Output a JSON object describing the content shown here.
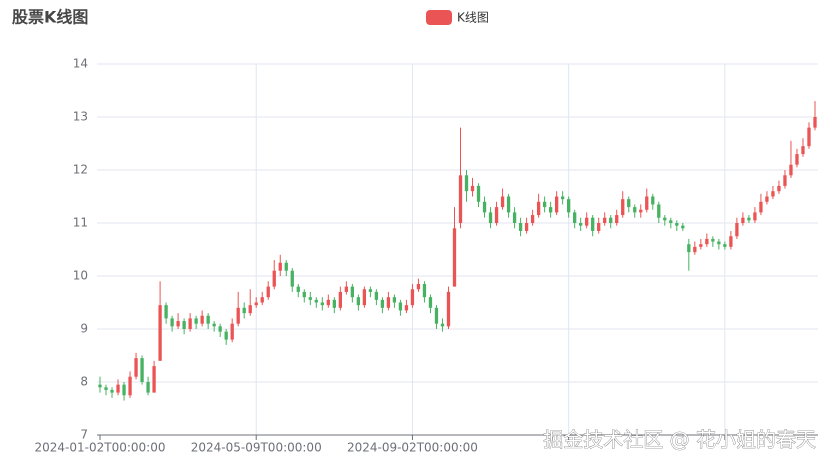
{
  "chart_data": {
    "type": "candlestick",
    "title": "股票K线图",
    "legend": "top",
    "watermark": "掘金技术社区 @ 花小姐的春天",
    "series": [
      {
        "name": "K线图",
        "color": "#eb5454",
        "down_color": "#47b262",
        "values": [
          [
            7.95,
            7.9,
            7.8,
            8.1
          ],
          [
            7.9,
            7.85,
            7.75,
            7.95
          ],
          [
            7.85,
            7.8,
            7.7,
            7.9
          ],
          [
            7.8,
            7.95,
            7.75,
            8.05
          ],
          [
            7.95,
            7.75,
            7.65,
            8.0
          ],
          [
            7.75,
            8.1,
            7.7,
            8.2
          ],
          [
            8.1,
            8.45,
            8.05,
            8.55
          ],
          [
            8.45,
            8.0,
            7.95,
            8.5
          ],
          [
            8.0,
            7.8,
            7.75,
            8.1
          ],
          [
            7.8,
            8.3,
            7.8,
            8.4
          ],
          [
            8.4,
            9.45,
            8.4,
            9.9
          ],
          [
            9.45,
            9.2,
            9.1,
            9.5
          ],
          [
            9.2,
            9.05,
            8.95,
            9.25
          ],
          [
            9.05,
            9.15,
            9.0,
            9.3
          ],
          [
            9.15,
            9.0,
            8.9,
            9.2
          ],
          [
            9.0,
            9.2,
            8.95,
            9.3
          ],
          [
            9.2,
            9.1,
            9.0,
            9.25
          ],
          [
            9.1,
            9.25,
            9.05,
            9.35
          ],
          [
            9.25,
            9.1,
            9.0,
            9.3
          ],
          [
            9.1,
            9.05,
            8.95,
            9.15
          ],
          [
            9.05,
            8.95,
            8.85,
            9.1
          ],
          [
            8.95,
            8.8,
            8.7,
            9.0
          ],
          [
            8.8,
            9.1,
            8.75,
            9.2
          ],
          [
            9.1,
            9.4,
            9.05,
            9.7
          ],
          [
            9.4,
            9.3,
            9.2,
            9.5
          ],
          [
            9.3,
            9.45,
            9.25,
            9.75
          ],
          [
            9.45,
            9.5,
            9.4,
            9.6
          ],
          [
            9.5,
            9.6,
            9.45,
            9.7
          ],
          [
            9.6,
            9.8,
            9.55,
            9.9
          ],
          [
            9.8,
            10.1,
            9.75,
            10.3
          ],
          [
            10.1,
            10.25,
            10.0,
            10.4
          ],
          [
            10.25,
            10.1,
            10.0,
            10.3
          ],
          [
            10.1,
            9.8,
            9.7,
            10.15
          ],
          [
            9.8,
            9.7,
            9.6,
            9.85
          ],
          [
            9.7,
            9.6,
            9.5,
            9.75
          ],
          [
            9.6,
            9.55,
            9.45,
            9.7
          ],
          [
            9.55,
            9.5,
            9.4,
            9.6
          ],
          [
            9.5,
            9.45,
            9.35,
            9.6
          ],
          [
            9.45,
            9.55,
            9.4,
            9.65
          ],
          [
            9.55,
            9.4,
            9.3,
            9.6
          ],
          [
            9.4,
            9.7,
            9.35,
            9.8
          ],
          [
            9.7,
            9.8,
            9.65,
            9.9
          ],
          [
            9.8,
            9.6,
            9.5,
            9.85
          ],
          [
            9.6,
            9.45,
            9.35,
            9.65
          ],
          [
            9.45,
            9.75,
            9.4,
            9.8
          ],
          [
            9.75,
            9.7,
            9.6,
            9.8
          ],
          [
            9.7,
            9.55,
            9.45,
            9.75
          ],
          [
            9.55,
            9.4,
            9.3,
            9.6
          ],
          [
            9.4,
            9.6,
            9.35,
            9.7
          ],
          [
            9.6,
            9.5,
            9.4,
            9.65
          ],
          [
            9.5,
            9.35,
            9.25,
            9.55
          ],
          [
            9.35,
            9.45,
            9.3,
            9.55
          ],
          [
            9.45,
            9.75,
            9.4,
            9.85
          ],
          [
            9.75,
            9.85,
            9.7,
            9.95
          ],
          [
            9.85,
            9.6,
            9.5,
            9.9
          ],
          [
            9.6,
            9.4,
            9.3,
            9.65
          ],
          [
            9.4,
            9.1,
            9.0,
            9.45
          ],
          [
            9.1,
            9.05,
            8.95,
            9.2
          ],
          [
            9.05,
            9.7,
            9.0,
            9.8
          ],
          [
            9.8,
            10.9,
            9.8,
            11.3
          ],
          [
            11.0,
            11.9,
            10.9,
            12.8
          ],
          [
            11.9,
            11.6,
            11.4,
            12.0
          ],
          [
            11.6,
            11.7,
            11.5,
            11.85
          ],
          [
            11.7,
            11.4,
            11.3,
            11.75
          ],
          [
            11.4,
            11.2,
            11.1,
            11.5
          ],
          [
            11.2,
            11.0,
            10.9,
            11.3
          ],
          [
            11.0,
            11.3,
            10.95,
            11.4
          ],
          [
            11.3,
            11.5,
            11.25,
            11.65
          ],
          [
            11.5,
            11.2,
            11.1,
            11.55
          ],
          [
            11.2,
            11.0,
            10.9,
            11.3
          ],
          [
            11.0,
            10.85,
            10.75,
            11.1
          ],
          [
            10.85,
            11.0,
            10.8,
            11.1
          ],
          [
            11.0,
            11.15,
            10.95,
            11.25
          ],
          [
            11.15,
            11.4,
            11.1,
            11.55
          ],
          [
            11.4,
            11.3,
            11.2,
            11.5
          ],
          [
            11.3,
            11.2,
            11.1,
            11.4
          ],
          [
            11.2,
            11.5,
            11.15,
            11.6
          ],
          [
            11.5,
            11.45,
            11.35,
            11.6
          ],
          [
            11.45,
            11.2,
            11.1,
            11.5
          ],
          [
            11.2,
            11.0,
            10.9,
            11.25
          ],
          [
            11.0,
            10.95,
            10.85,
            11.1
          ],
          [
            10.95,
            11.1,
            10.9,
            11.2
          ],
          [
            11.1,
            10.85,
            10.75,
            11.15
          ],
          [
            10.85,
            11.0,
            10.8,
            11.1
          ],
          [
            11.0,
            11.1,
            10.95,
            11.2
          ],
          [
            11.1,
            11.0,
            10.9,
            11.15
          ],
          [
            11.0,
            11.15,
            10.95,
            11.25
          ],
          [
            11.15,
            11.45,
            11.1,
            11.6
          ],
          [
            11.45,
            11.3,
            11.2,
            11.5
          ],
          [
            11.3,
            11.2,
            11.1,
            11.35
          ],
          [
            11.2,
            11.25,
            11.1,
            11.35
          ],
          [
            11.25,
            11.5,
            11.2,
            11.65
          ],
          [
            11.5,
            11.35,
            11.25,
            11.55
          ],
          [
            11.35,
            11.1,
            11.0,
            11.4
          ],
          [
            11.1,
            11.05,
            10.95,
            11.15
          ],
          [
            11.05,
            11.0,
            10.9,
            11.1
          ],
          [
            11.0,
            10.95,
            10.85,
            11.05
          ],
          [
            10.95,
            10.9,
            10.85,
            11.0
          ],
          [
            10.6,
            10.45,
            10.1,
            10.7
          ],
          [
            10.45,
            10.55,
            10.4,
            10.65
          ],
          [
            10.55,
            10.6,
            10.5,
            10.7
          ],
          [
            10.6,
            10.7,
            10.55,
            10.8
          ],
          [
            10.7,
            10.65,
            10.55,
            10.75
          ],
          [
            10.65,
            10.6,
            10.5,
            10.7
          ],
          [
            10.6,
            10.55,
            10.5,
            10.65
          ],
          [
            10.55,
            10.75,
            10.5,
            10.85
          ],
          [
            10.75,
            11.0,
            10.7,
            11.1
          ],
          [
            11.0,
            11.1,
            10.95,
            11.2
          ],
          [
            11.1,
            11.05,
            11.0,
            11.15
          ],
          [
            11.05,
            11.2,
            11.0,
            11.3
          ],
          [
            11.2,
            11.4,
            11.15,
            11.55
          ],
          [
            11.4,
            11.5,
            11.35,
            11.6
          ],
          [
            11.5,
            11.6,
            11.45,
            11.7
          ],
          [
            11.6,
            11.7,
            11.55,
            11.8
          ],
          [
            11.7,
            11.9,
            11.65,
            12.0
          ],
          [
            11.9,
            12.1,
            11.85,
            12.55
          ],
          [
            12.1,
            12.3,
            12.05,
            12.4
          ],
          [
            12.3,
            12.45,
            12.25,
            12.6
          ],
          [
            12.45,
            12.8,
            12.4,
            12.9
          ],
          [
            12.8,
            13.0,
            12.75,
            13.3
          ]
        ]
      }
    ],
    "categories": [
      "2024-01-02T00:00:00",
      null,
      null,
      null,
      null,
      null,
      null,
      null,
      null,
      null,
      null,
      null,
      null,
      null,
      null,
      null,
      null,
      null,
      null,
      null,
      null,
      null,
      null,
      null,
      null,
      null,
      "2024-05-09T00:00:00",
      null,
      null,
      null,
      null,
      null,
      null,
      null,
      null,
      null,
      null,
      null,
      null,
      null,
      null,
      null,
      null,
      null,
      null,
      null,
      null,
      null,
      null,
      null,
      null,
      null,
      "2024-09-02T00:00:00",
      null,
      null,
      null,
      null,
      null,
      null,
      null,
      null,
      null,
      null,
      null,
      null,
      null,
      null,
      null,
      null,
      null,
      null,
      null,
      null,
      null,
      null,
      null,
      null,
      null,
      null,
      null,
      null,
      null,
      null,
      null,
      null,
      null,
      null,
      null,
      null,
      null,
      null,
      null,
      null,
      null,
      null,
      null,
      null,
      null,
      null,
      null,
      null,
      null,
      null,
      null,
      null,
      null,
      null,
      null,
      null,
      null,
      null,
      null,
      null,
      null,
      null,
      null,
      null,
      null,
      null,
      null
    ],
    "ylim": [
      7,
      14
    ],
    "yticks": [
      7,
      8,
      9,
      10,
      11,
      12,
      13,
      14
    ],
    "grid": true
  }
}
